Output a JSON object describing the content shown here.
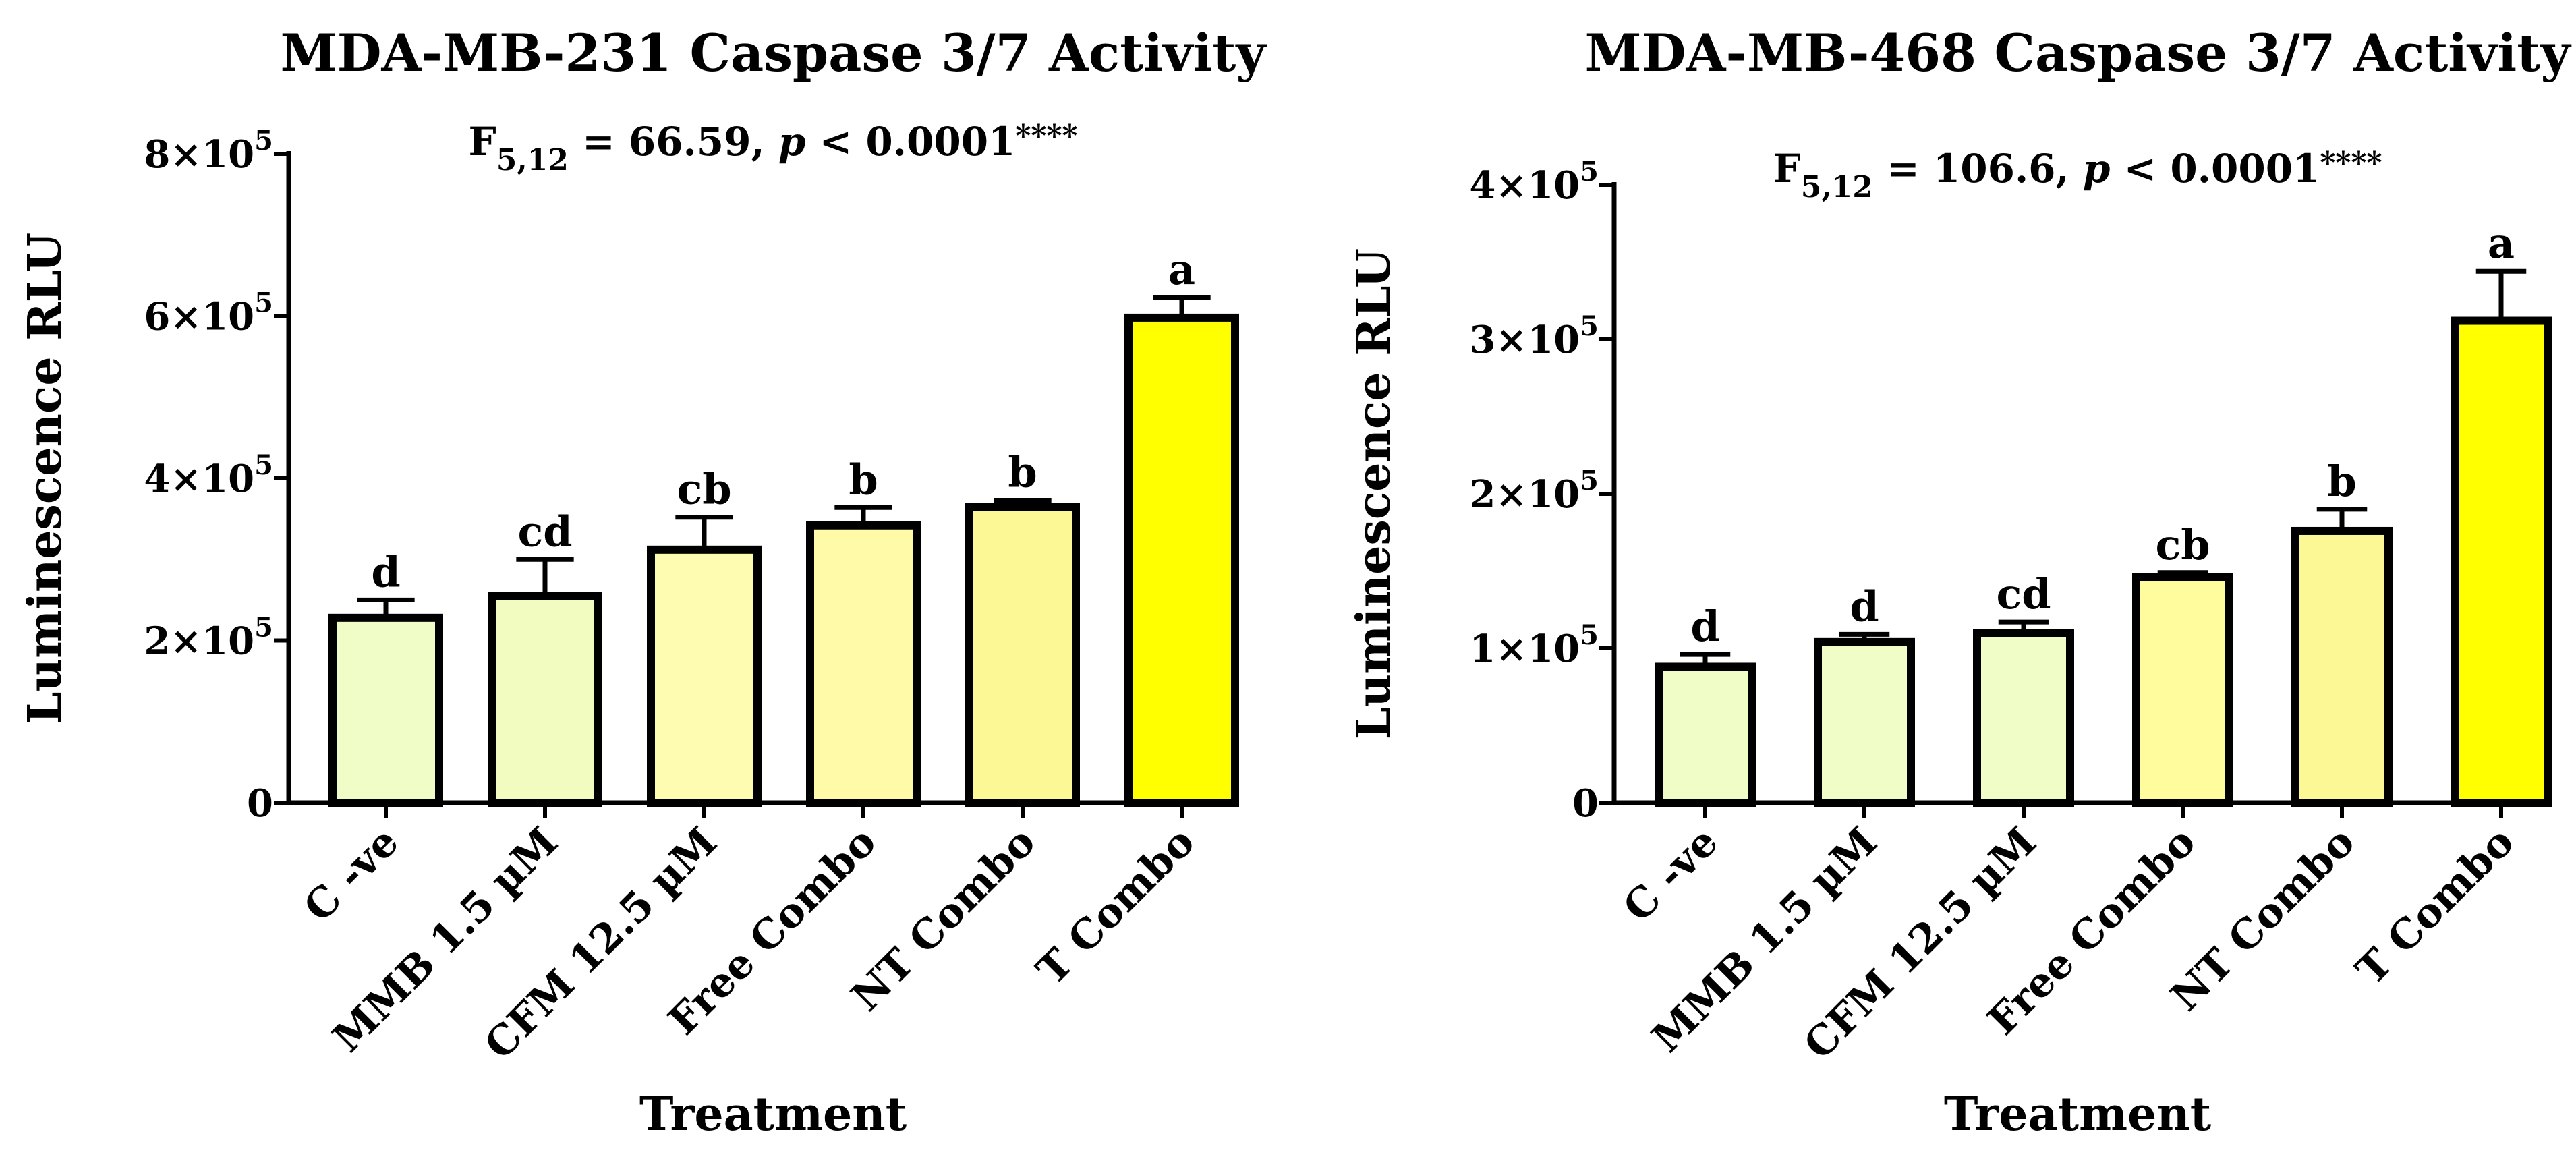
{
  "chart_data": [
    {
      "type": "bar",
      "title": "MDA-MB-231 Caspase 3/7 Activity",
      "stat": {
        "prefix": "F",
        "subscript": "5,12",
        "value": " = 66.59, ",
        "p_label": "p",
        "p_value": " < 0.0001",
        "stars": "****"
      },
      "xlabel": "Treatment",
      "ylabel": "Luminescence RLU",
      "ylim": [
        0,
        800000
      ],
      "yticks": [
        {
          "value": 0,
          "label": "0",
          "exp": ""
        },
        {
          "value": 200000,
          "label": "2×10",
          "exp": "5"
        },
        {
          "value": 400000,
          "label": "4×10",
          "exp": "5"
        },
        {
          "value": 600000,
          "label": "6×10",
          "exp": "5"
        },
        {
          "value": 800000,
          "label": "8×10",
          "exp": "5"
        }
      ],
      "categories": [
        "C -ve",
        "MMB 1.5 µM",
        "CFM 12.5 µM",
        "Free Combo",
        "NT Combo",
        "T Combo"
      ],
      "values": [
        228000,
        255000,
        312000,
        342000,
        365000,
        598000
      ],
      "errors": [
        22000,
        45000,
        40000,
        22000,
        8000,
        25000
      ],
      "letters": [
        "d",
        "cd",
        "cb",
        "b",
        "b",
        "a"
      ],
      "colors": [
        "#f0fdc6",
        "#f2fcc0",
        "#fdfcb0",
        "#fefaa8",
        "#fdf896",
        "#ffff00"
      ]
    },
    {
      "type": "bar",
      "title": "MDA-MB-468 Caspase 3/7 Activity",
      "stat": {
        "prefix": "F",
        "subscript": "5,12",
        "value": " = 106.6, ",
        "p_label": "p",
        "p_value": " < 0.0001",
        "stars": "****"
      },
      "xlabel": "Treatment",
      "ylabel": "Luminescence RLU",
      "ylim": [
        0,
        400000
      ],
      "yticks": [
        {
          "value": 0,
          "label": "0",
          "exp": ""
        },
        {
          "value": 100000,
          "label": "1×10",
          "exp": "5"
        },
        {
          "value": 200000,
          "label": "2×10",
          "exp": "5"
        },
        {
          "value": 300000,
          "label": "3×10",
          "exp": "5"
        },
        {
          "value": 400000,
          "label": "4×10",
          "exp": "5"
        }
      ],
      "categories": [
        "C -ve",
        "MMB 1.5 µM",
        "CFM 12.5 µM",
        "Free Combo",
        "NT Combo",
        "T Combo"
      ],
      "values": [
        88000,
        104000,
        110000,
        146000,
        176000,
        312000
      ],
      "errors": [
        8000,
        5000,
        7000,
        3000,
        14000,
        32000
      ],
      "letters": [
        "d",
        "d",
        "cd",
        "cb",
        "b",
        "a"
      ],
      "colors": [
        "#f0fdc6",
        "#f0fdc6",
        "#f0fdc6",
        "#fffc9e",
        "#fdf896",
        "#ffff00"
      ]
    }
  ]
}
